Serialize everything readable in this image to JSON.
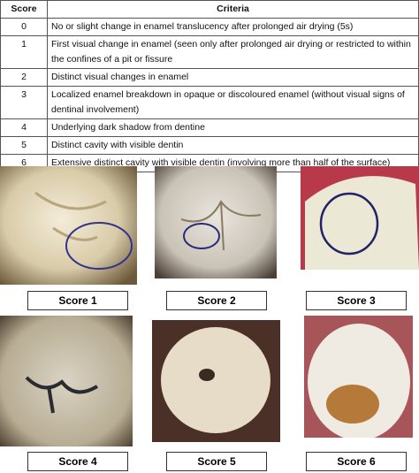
{
  "table": {
    "header": [
      "Score",
      "Criteria"
    ],
    "rows": [
      [
        "0",
        "No or slight change in enamel translucency after prolonged air drying (5s)"
      ],
      [
        "1",
        "First visual change in enamel (seen only after prolonged air drying or restricted to within the confines of a pit or fissure"
      ],
      [
        "2",
        "Distinct visual changes in enamel"
      ],
      [
        "3",
        "Localized enamel breakdown in opaque or discoloured enamel (without visual signs of dentinal involvement)"
      ],
      [
        "4",
        "Underlying dark shadow from dentine"
      ],
      [
        "5",
        "Distinct cavity with visible dentin"
      ],
      [
        "6",
        "Extensive distinct cavity with visible dentin (involving more than half of the surface)"
      ]
    ]
  },
  "figures": [
    {
      "label": "Score 1"
    },
    {
      "label": "Score 2"
    },
    {
      "label": "Score 3"
    },
    {
      "label": "Score 4"
    },
    {
      "label": "Score 5"
    },
    {
      "label": "Score 6"
    }
  ]
}
